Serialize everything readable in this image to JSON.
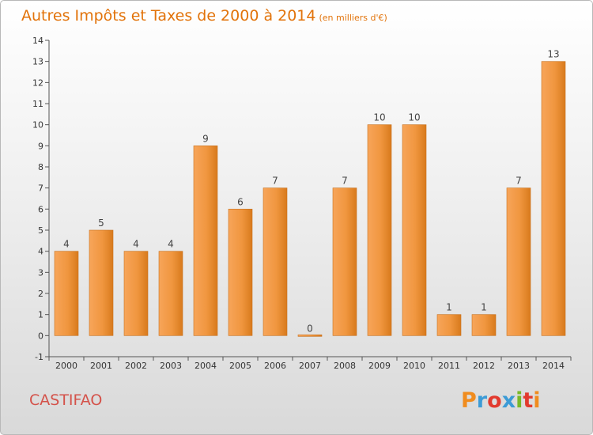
{
  "title": "Autres Impôts et Taxes de 2000 à 2014",
  "subtitle": "(en milliers d'€)",
  "commune": "CASTIFAO",
  "logo": {
    "text": "Proxiti",
    "colors": [
      "#f08c1e",
      "#3c9bd6",
      "#e23a2e",
      "#3c9bd6",
      "#78b928",
      "#e23a2e",
      "#f08c1e"
    ]
  },
  "colors": {
    "bar_light": "#f7a55a",
    "bar_dark": "#d87a1c",
    "title": "#e2730a",
    "commune": "#d4524a"
  },
  "chart_data": {
    "type": "bar",
    "categories": [
      "2000",
      "2001",
      "2002",
      "2003",
      "2004",
      "2005",
      "2006",
      "2007",
      "2008",
      "2009",
      "2010",
      "2011",
      "2012",
      "2013",
      "2014"
    ],
    "values": [
      4,
      5,
      4,
      4,
      9,
      6,
      7,
      0,
      7,
      10,
      10,
      1,
      1,
      7,
      13
    ],
    "data_labels": [
      "4",
      "5",
      "4",
      "4",
      "9",
      "6",
      "7",
      "0",
      "7",
      "10",
      "10",
      "1",
      "1",
      "7",
      "13"
    ],
    "ylim": [
      -1,
      14
    ],
    "yticks": [
      "-1",
      "0",
      "1",
      "2",
      "3",
      "4",
      "5",
      "6",
      "7",
      "8",
      "9",
      "10",
      "11",
      "12",
      "13",
      "14"
    ],
    "grid": false,
    "legend": "none"
  }
}
